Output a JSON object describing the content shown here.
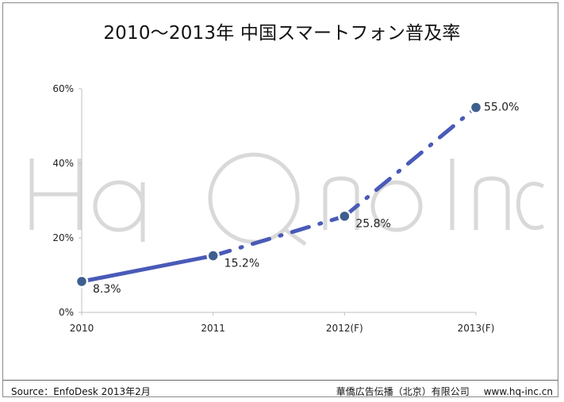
{
  "chart_data": {
    "type": "line",
    "title": "2010～2013年 中国スマートフォン普及率",
    "categories": [
      "2010",
      "2011",
      "2012(F)",
      "2013(F)"
    ],
    "series": [
      {
        "values": [
          8.3,
          15.2,
          25.8,
          55.0
        ],
        "value_labels": [
          "8.3%",
          "15.2%",
          "25.8%",
          "55.0%"
        ],
        "color": "#4a5ab8",
        "actual_segment": [
          0,
          1
        ],
        "forecast_segment": [
          1,
          3
        ]
      }
    ],
    "ylim": [
      0,
      60
    ],
    "yticks": [
      0,
      20,
      40,
      60
    ],
    "ytick_labels": [
      "0%",
      "20%",
      "40%",
      "60%"
    ],
    "grid": false,
    "legend": "none"
  },
  "footer": {
    "source": "Source：EnfoDesk 2013年2月",
    "company": "華僑広告伝播（北京）有限公司",
    "website": "www.hq-inc.cn"
  },
  "colors": {
    "line": "#4a5ab8",
    "marker_fill": "#3e5e8e",
    "axis": "#bfbfbf"
  }
}
